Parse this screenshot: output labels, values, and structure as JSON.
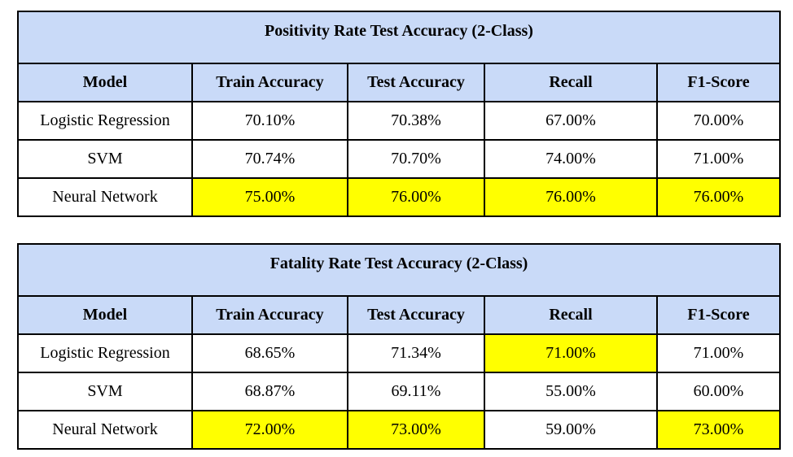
{
  "tables": [
    {
      "title": "Positivity Rate Test Accuracy (2-Class)",
      "columns": [
        "Model",
        "Train Accuracy",
        "Test Accuracy",
        "Recall",
        "F1-Score"
      ],
      "rows": [
        {
          "cells": [
            "Logistic Regression",
            "70.10%",
            "70.38%",
            "67.00%",
            "70.00%"
          ],
          "highlight": [
            false,
            false,
            false,
            false,
            false
          ]
        },
        {
          "cells": [
            "SVM",
            "70.74%",
            "70.70%",
            "74.00%",
            "71.00%"
          ],
          "highlight": [
            false,
            false,
            false,
            false,
            false
          ]
        },
        {
          "cells": [
            "Neural Network",
            "75.00%",
            "76.00%",
            "76.00%",
            "76.00%"
          ],
          "highlight": [
            false,
            true,
            true,
            true,
            true
          ]
        }
      ]
    },
    {
      "title": "Fatality Rate Test Accuracy (2-Class)",
      "columns": [
        "Model",
        "Train Accuracy",
        "Test Accuracy",
        "Recall",
        "F1-Score"
      ],
      "rows": [
        {
          "cells": [
            "Logistic Regression",
            "68.65%",
            "71.34%",
            "71.00%",
            "71.00%"
          ],
          "highlight": [
            false,
            false,
            false,
            true,
            false
          ]
        },
        {
          "cells": [
            "SVM",
            "68.87%",
            "69.11%",
            "55.00%",
            "60.00%"
          ],
          "highlight": [
            false,
            false,
            false,
            false,
            false
          ]
        },
        {
          "cells": [
            "Neural Network",
            "72.00%",
            "73.00%",
            "59.00%",
            "73.00%"
          ],
          "highlight": [
            false,
            true,
            true,
            false,
            true
          ]
        }
      ]
    }
  ],
  "colors": {
    "header_fill": "#c9daf8",
    "highlight_fill": "#ffff00",
    "border": "#000000"
  }
}
